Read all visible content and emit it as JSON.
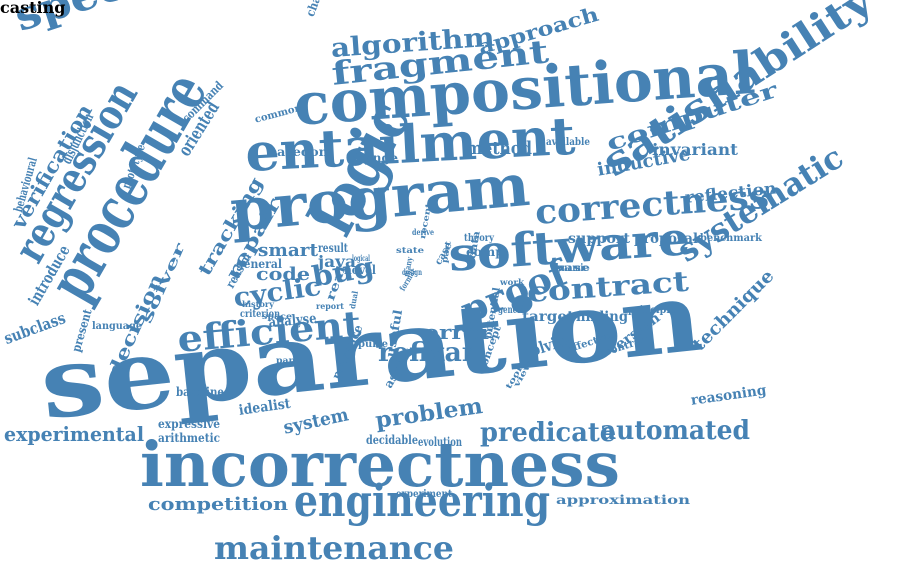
{
  "colors": {
    "word": "#4682b4",
    "background": "#ffffff"
  },
  "words": [
    "separation",
    "incorrectness",
    "compositional",
    "logic",
    "procedure",
    "program",
    "entailment",
    "specification",
    "satisfiability",
    "software",
    "regression",
    "engineering",
    "correctness",
    "maintenance",
    "efficient",
    "proof",
    "contract",
    "systematic",
    "predicate",
    "automated",
    "computer",
    "fragment",
    "algorithm",
    "approach",
    "verification",
    "technique",
    "problem",
    "experimental",
    "competition",
    "bug",
    "refixar",
    "cyclic",
    "error",
    "tracking",
    "repair",
    "decision",
    "solver",
    "code",
    "smart",
    "inductive",
    "invariant",
    "method",
    "reflection",
    "approximation",
    "reasoning",
    "oriented",
    "target",
    "finding",
    "version",
    "solving",
    "system",
    "introduce",
    "subclass",
    "analyse",
    "java",
    "support",
    "proposal",
    "benchmark",
    "challenging",
    "basedon",
    "change",
    "available",
    "common",
    "command",
    "disjunction",
    "behavioural",
    "prototype",
    "result",
    "general",
    "reason",
    "present",
    "language",
    "criterion",
    "baseline",
    "expressive",
    "arithmetic",
    "idealist",
    "presence",
    "aspect",
    "useful",
    "decidable",
    "evolution",
    "experiment",
    "principle",
    "effective",
    "icontract",
    "potential",
    "real",
    "pulse",
    "concept",
    "novel",
    "comp",
    "theory",
    "derive",
    "base",
    "dynamic",
    "generic",
    "format",
    "data",
    "history",
    "space",
    "design",
    "tool",
    "case",
    "state",
    "recent",
    "logical",
    "part",
    "work",
    "paper",
    "report",
    "many",
    "dual",
    "view",
    "casting"
  ]
}
